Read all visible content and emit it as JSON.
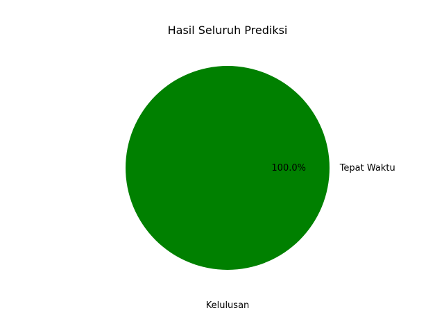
{
  "chart_data": {
    "type": "pie",
    "title": "Hasil Seluruh Prediksi",
    "xlabel": "Kelulusan",
    "ylabel": "",
    "categories": [
      "Tepat Waktu"
    ],
    "values": [
      100.0
    ],
    "percent_labels": [
      "100.0%"
    ],
    "colors": [
      "#008000"
    ],
    "legend": "none"
  }
}
